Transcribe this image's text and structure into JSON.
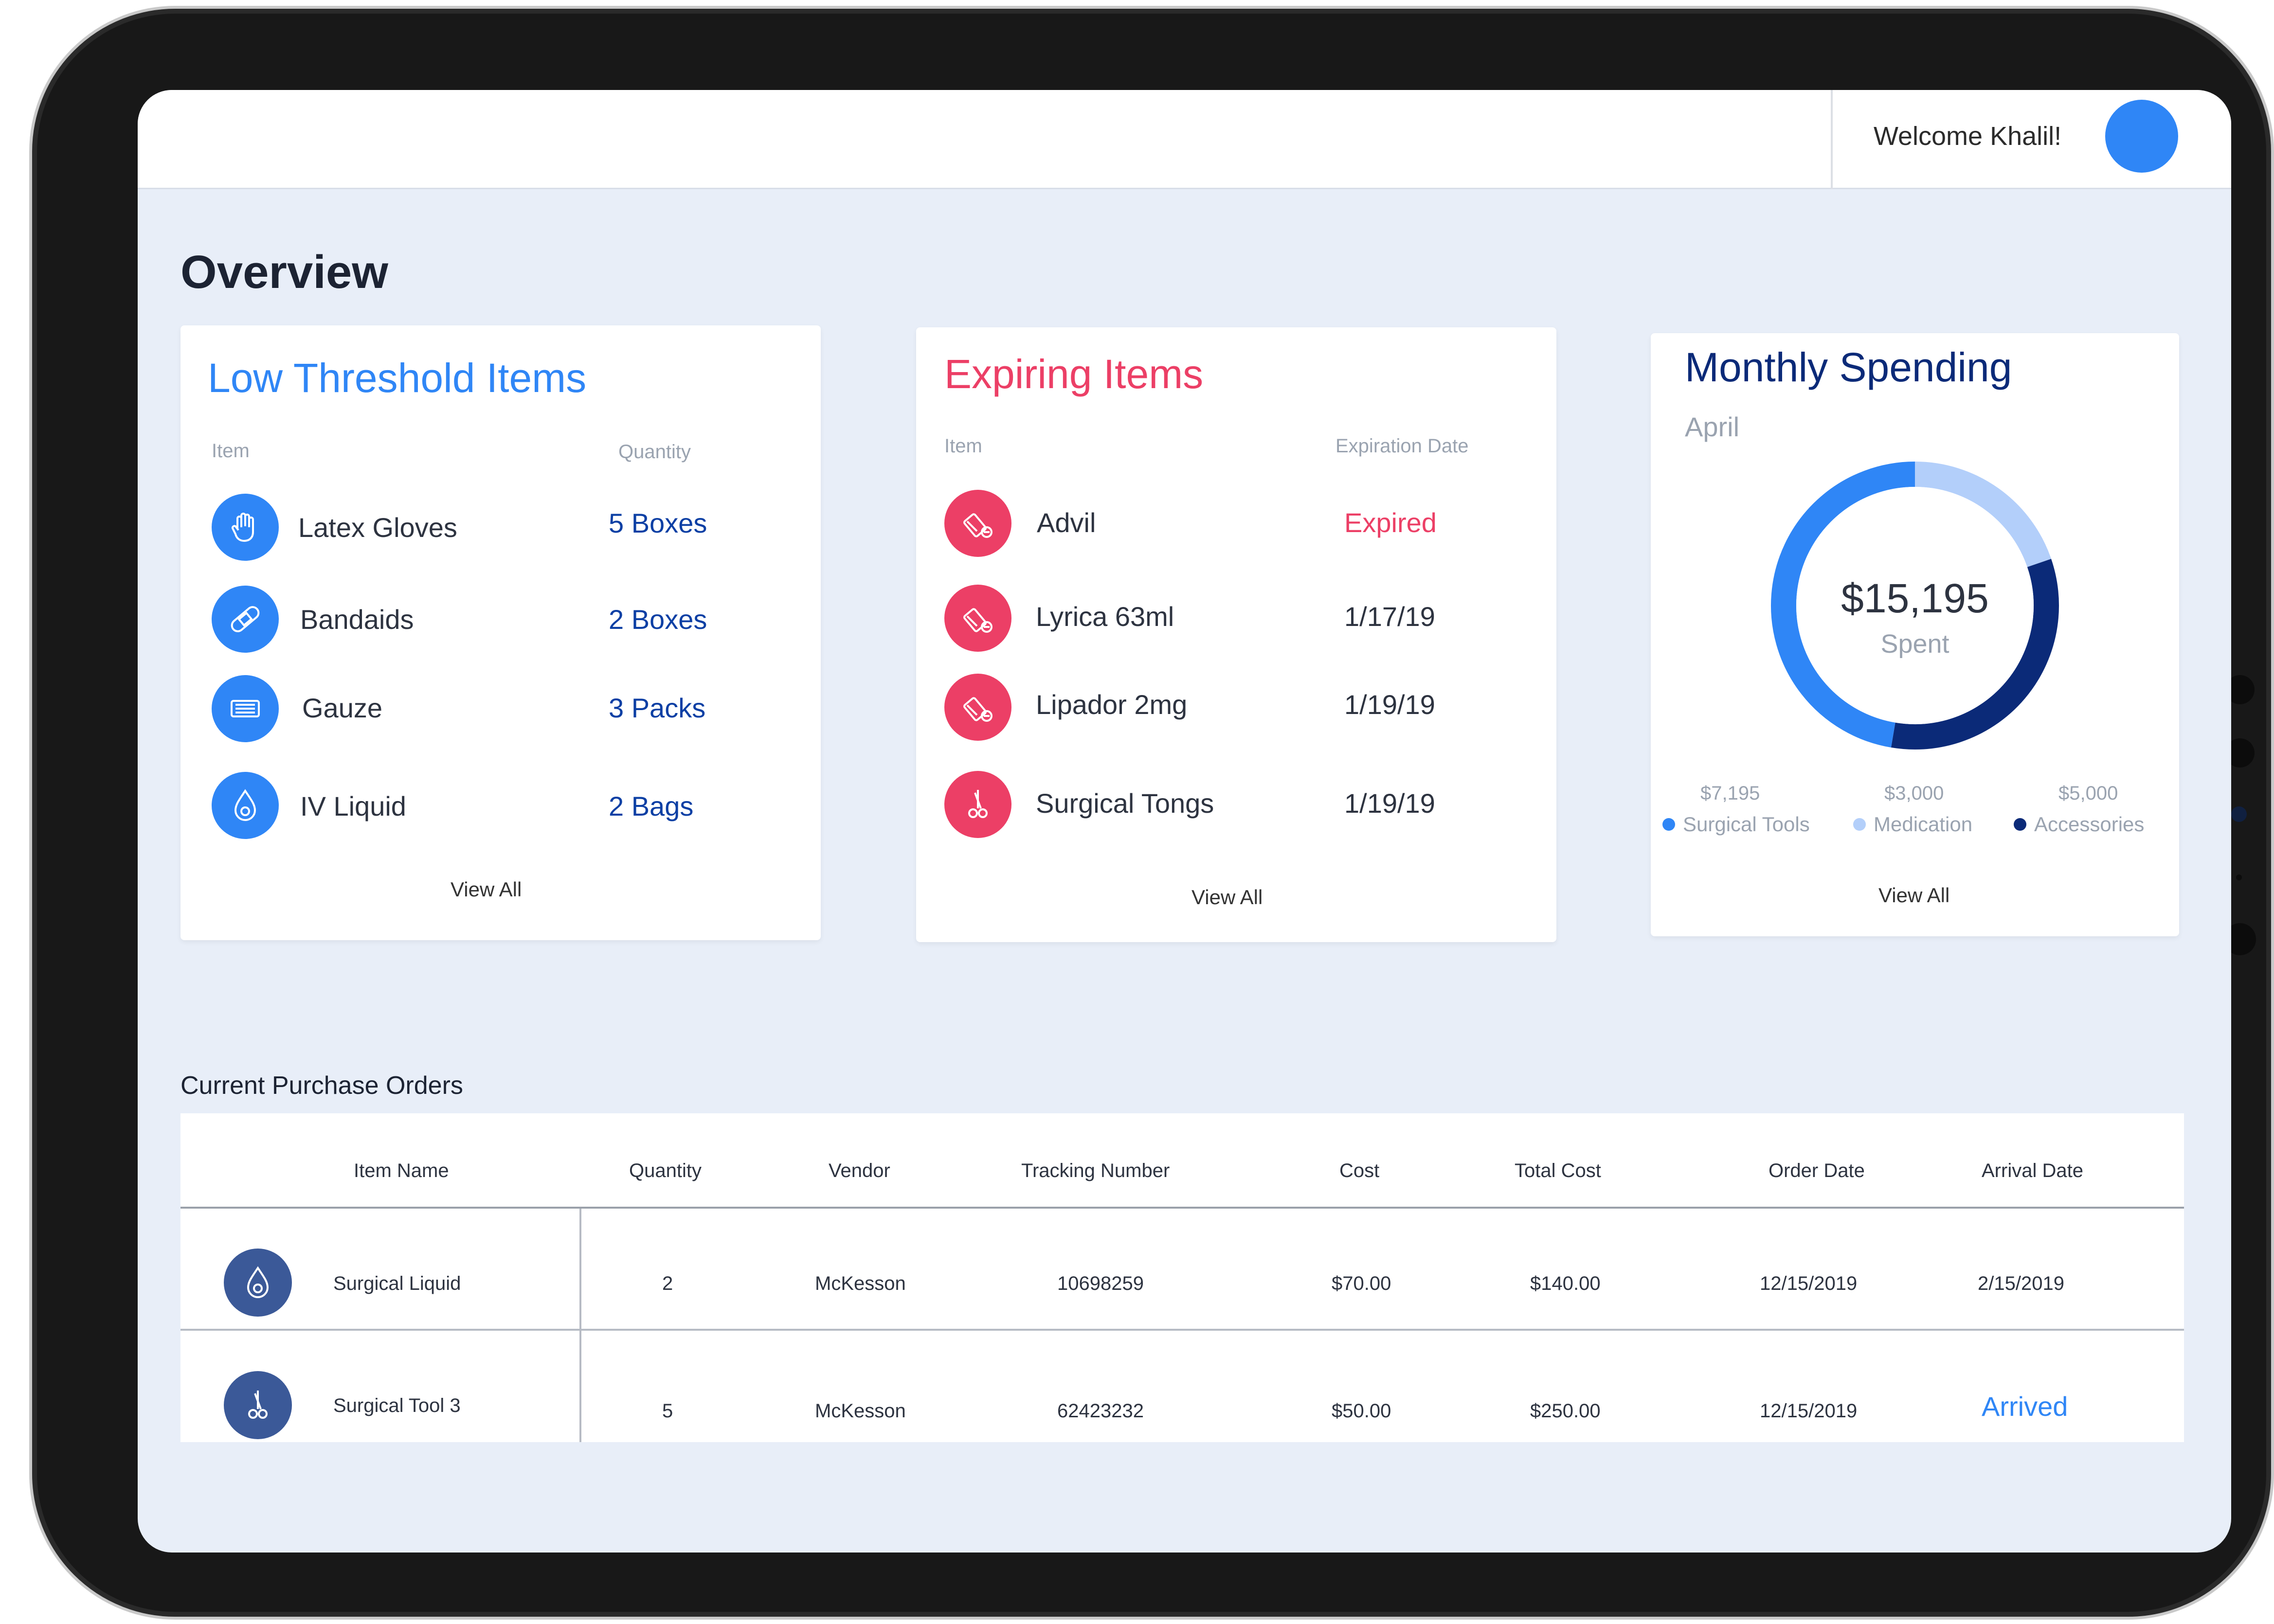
{
  "header": {
    "welcome": "Welcome Khalil!"
  },
  "page_title": "Overview",
  "low_threshold": {
    "title": "Low Threshold Items",
    "col_item": "Item",
    "col_qty": "Quantity",
    "items": [
      {
        "name": "Latex Gloves",
        "qty": "5 Boxes",
        "icon": "glove-icon"
      },
      {
        "name": "Bandaids",
        "qty": "2 Boxes",
        "icon": "bandaid-icon"
      },
      {
        "name": "Gauze",
        "qty": "3 Packs",
        "icon": "gauze-icon"
      },
      {
        "name": "IV Liquid",
        "qty": "2 Bags",
        "icon": "iv-drop-icon"
      }
    ],
    "view_all": "View All",
    "accent": "#2f86f6"
  },
  "expiring": {
    "title": "Expiring Items",
    "col_item": "Item",
    "col_date": "Expiration Date",
    "items": [
      {
        "name": "Advil",
        "date": "Expired",
        "icon": "pill-bottle-icon"
      },
      {
        "name": "Lyrica 63ml",
        "date": "1/17/19",
        "icon": "pill-bottle-icon"
      },
      {
        "name": "Lipador 2mg",
        "date": "1/19/19",
        "icon": "pill-bottle-icon"
      },
      {
        "name": "Surgical Tongs",
        "date": "1/19/19",
        "icon": "scissors-icon"
      }
    ],
    "view_all": "View All",
    "accent": "#ec3f66"
  },
  "spending": {
    "title": "Monthly Spending",
    "month": "April",
    "total": "$15,195",
    "total_label": "Spent",
    "legend": [
      {
        "amount": "$7,195",
        "label": "Surgical Tools",
        "color": "#2f86f6"
      },
      {
        "amount": "$3,000",
        "label": "Medication",
        "color": "#b3cffa"
      },
      {
        "amount": "$5,000",
        "label": "Accessories",
        "color": "#0b2a78"
      }
    ],
    "view_all": "View All"
  },
  "chart_data": {
    "type": "pie",
    "categories": [
      "Surgical Tools",
      "Medication",
      "Accessories"
    ],
    "values": [
      7195,
      3000,
      5000
    ],
    "title": "Monthly Spending"
  },
  "orders": {
    "title": "Current Purchase Orders",
    "columns": [
      "Item Name",
      "Quantity",
      "Vendor",
      "Tracking Number",
      "Cost",
      "Total Cost",
      "Order Date",
      "Arrival Date"
    ],
    "rows": [
      {
        "icon": "iv-drop-icon",
        "name": "Surgical Liquid",
        "qty": "2",
        "vendor": "McKesson",
        "tracking": "10698259",
        "cost": "$70.00",
        "total": "$140.00",
        "order_date": "12/15/2019",
        "arrival": "2/15/2019"
      },
      {
        "icon": "scissors-icon",
        "name": "Surgical Tool 3",
        "qty": "5",
        "vendor": "McKesson",
        "tracking": "62423232",
        "cost": "$50.00",
        "total": "$250.00",
        "order_date": "12/15/2019",
        "arrival": "Arrived"
      }
    ]
  }
}
